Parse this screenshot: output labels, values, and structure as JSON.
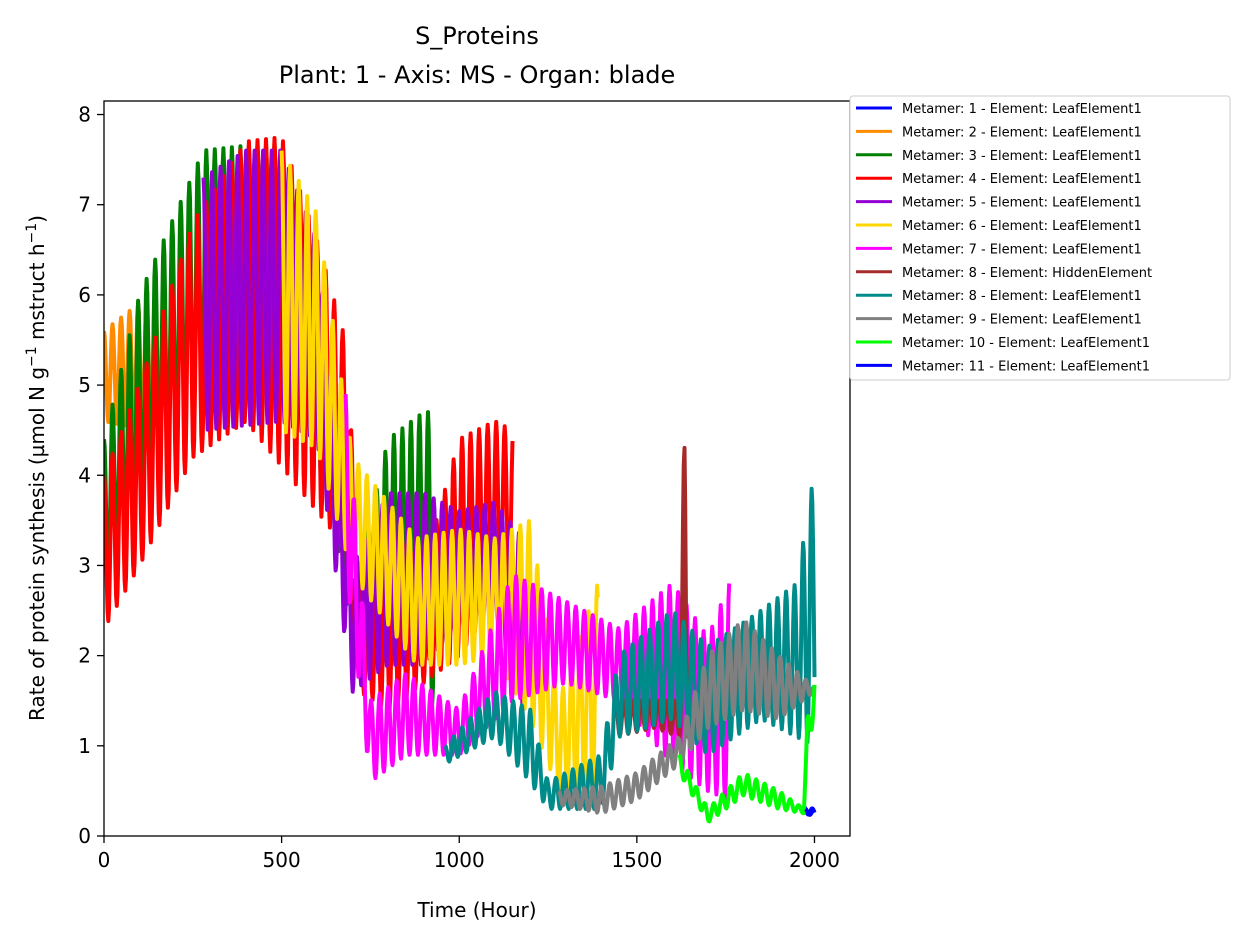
{
  "chart_data": {
    "type": "line",
    "title": "S_Proteins",
    "subtitle": "Plant: 1 - Axis: MS - Organ: blade",
    "xlabel": "Time (Hour)",
    "ylabel_main": "Rate of protein synthesis (µmol N g",
    "ylabel_sup1": "−1",
    "ylabel_mid": " mstruct h",
    "ylabel_sup2": "−1",
    "ylabel_end": ")",
    "xlim": [
      0,
      2100
    ],
    "ylim": [
      0,
      8.15
    ],
    "xticks": [
      0,
      500,
      1000,
      1500,
      2000
    ],
    "xtick_labels": [
      "0",
      "500",
      "1000",
      "1500",
      "2000"
    ],
    "yticks": [
      0,
      1,
      2,
      3,
      4,
      5,
      6,
      7,
      8
    ],
    "ytick_labels": [
      "0",
      "1",
      "2",
      "3",
      "4",
      "5",
      "6",
      "7",
      "8"
    ],
    "grid": false,
    "legend_position": "outside-right-top",
    "series": [
      {
        "name": "Metamer: 1 - Element: LeafElement1",
        "color": "#0000ff",
        "x_start": 1970,
        "x_end": 2000,
        "period": 24,
        "low": [
          [
            1970,
            0.25
          ],
          [
            2000,
            0.22
          ]
        ],
        "high": [
          [
            1970,
            0.33
          ],
          [
            2000,
            0.3
          ]
        ]
      },
      {
        "name": "Metamer: 2 - Element: LeafElement1",
        "color": "#ff8c00",
        "x_start": 0,
        "x_end": 260,
        "period": 24,
        "low": [
          [
            0,
            4.6
          ],
          [
            130,
            4.5
          ],
          [
            260,
            4.7
          ]
        ],
        "high": [
          [
            0,
            5.6
          ],
          [
            130,
            6.0
          ],
          [
            260,
            6.4
          ]
        ]
      },
      {
        "name": "Metamer: 3 - Element: LeafElement1",
        "color": "#008000",
        "x_start": 0,
        "x_end": 930,
        "period": 24,
        "low": [
          [
            0,
            2.7
          ],
          [
            100,
            3.5
          ],
          [
            280,
            4.7
          ],
          [
            500,
            4.6
          ],
          [
            650,
            3.4
          ],
          [
            720,
            1.7
          ],
          [
            800,
            1.6
          ],
          [
            900,
            1.7
          ],
          [
            930,
            1.4
          ]
        ],
        "high": [
          [
            0,
            4.4
          ],
          [
            100,
            6.0
          ],
          [
            280,
            7.6
          ],
          [
            500,
            7.7
          ],
          [
            650,
            5.5
          ],
          [
            720,
            3.0
          ],
          [
            800,
            4.4
          ],
          [
            900,
            4.7
          ],
          [
            930,
            4.7
          ]
        ]
      },
      {
        "name": "Metamer: 4 - Element: LeafElement1",
        "color": "#ff0000",
        "x_start": 0,
        "x_end": 1150,
        "period": 24,
        "low": [
          [
            0,
            2.3
          ],
          [
            100,
            3.0
          ],
          [
            250,
            4.2
          ],
          [
            400,
            4.6
          ],
          [
            600,
            3.6
          ],
          [
            680,
            3.2
          ],
          [
            720,
            1.6
          ],
          [
            800,
            1.4
          ],
          [
            900,
            1.7
          ],
          [
            1000,
            2.0
          ],
          [
            1100,
            2.6
          ],
          [
            1150,
            2.7
          ]
        ],
        "high": [
          [
            0,
            4.0
          ],
          [
            100,
            5.0
          ],
          [
            250,
            6.8
          ],
          [
            400,
            7.7
          ],
          [
            500,
            7.75
          ],
          [
            600,
            6.6
          ],
          [
            680,
            5.5
          ],
          [
            720,
            3.0
          ],
          [
            800,
            3.4
          ],
          [
            900,
            3.0
          ],
          [
            1000,
            4.4
          ],
          [
            1100,
            4.6
          ],
          [
            1150,
            4.5
          ]
        ]
      },
      {
        "name": "Metamer: 5 - Element: LeafElement1",
        "color": "#9400d3",
        "x_start": 280,
        "x_end": 1180,
        "period": 24,
        "low": [
          [
            280,
            4.5
          ],
          [
            500,
            4.6
          ],
          [
            600,
            4.4
          ],
          [
            700,
            1.6
          ],
          [
            800,
            1.9
          ],
          [
            900,
            1.9
          ],
          [
            1000,
            2.3
          ],
          [
            1100,
            2.5
          ],
          [
            1180,
            1.2
          ]
        ],
        "high": [
          [
            280,
            7.3
          ],
          [
            400,
            7.6
          ],
          [
            500,
            7.6
          ],
          [
            600,
            6.6
          ],
          [
            700,
            3.0
          ],
          [
            800,
            3.8
          ],
          [
            900,
            3.8
          ],
          [
            1000,
            3.6
          ],
          [
            1100,
            3.7
          ],
          [
            1180,
            3.3
          ]
        ]
      },
      {
        "name": "Metamer: 6 - Element: LeafElement1",
        "color": "#ffd700",
        "x_start": 500,
        "x_end": 1390,
        "period": 24,
        "low": [
          [
            500,
            4.5
          ],
          [
            600,
            4.3
          ],
          [
            700,
            2.9
          ],
          [
            880,
            1.9
          ],
          [
            1000,
            1.9
          ],
          [
            1100,
            2.0
          ],
          [
            1200,
            1.3
          ],
          [
            1280,
            0.5
          ],
          [
            1390,
            0.5
          ]
        ],
        "high": [
          [
            500,
            7.6
          ],
          [
            600,
            6.9
          ],
          [
            700,
            4.2
          ],
          [
            880,
            3.3
          ],
          [
            1000,
            3.4
          ],
          [
            1100,
            3.3
          ],
          [
            1200,
            3.5
          ],
          [
            1280,
            1.5
          ],
          [
            1390,
            2.8
          ]
        ]
      },
      {
        "name": "Metamer: 7 - Element: LeafElement1",
        "color": "#ff00ff",
        "x_start": 680,
        "x_end": 1760,
        "period": 24,
        "low": [
          [
            680,
            3.0
          ],
          [
            750,
            0.6
          ],
          [
            850,
            0.9
          ],
          [
            1000,
            0.9
          ],
          [
            1150,
            1.5
          ],
          [
            1300,
            1.7
          ],
          [
            1450,
            1.5
          ],
          [
            1600,
            0.8
          ],
          [
            1700,
            0.5
          ],
          [
            1760,
            0.4
          ]
        ],
        "high": [
          [
            680,
            4.9
          ],
          [
            750,
            1.5
          ],
          [
            850,
            1.8
          ],
          [
            1000,
            1.4
          ],
          [
            1150,
            2.9
          ],
          [
            1300,
            2.6
          ],
          [
            1450,
            2.3
          ],
          [
            1600,
            2.8
          ],
          [
            1700,
            2.2
          ],
          [
            1760,
            2.8
          ]
        ]
      },
      {
        "name": "Metamer: 8 - Element: HiddenElement",
        "color": "#a52a2a",
        "x_start": 1440,
        "x_end": 1650,
        "period": 24,
        "low": [
          [
            1440,
            1.1
          ],
          [
            1550,
            1.2
          ],
          [
            1620,
            1.1
          ],
          [
            1650,
            1.1
          ]
        ],
        "high": [
          [
            1440,
            1.5
          ],
          [
            1550,
            1.5
          ],
          [
            1620,
            1.5
          ],
          [
            1635,
            4.75
          ],
          [
            1650,
            1.6
          ]
        ]
      },
      {
        "name": "Metamer: 8 - Element: LeafElement1",
        "color": "#008b8b",
        "x_start": 960,
        "x_end": 2000,
        "period": 24,
        "low": [
          [
            960,
            0.8
          ],
          [
            1100,
            1.1
          ],
          [
            1200,
            0.6
          ],
          [
            1250,
            0.3
          ],
          [
            1400,
            0.3
          ],
          [
            1450,
            1.1
          ],
          [
            1600,
            1.3
          ],
          [
            1700,
            0.9
          ],
          [
            1850,
            1.3
          ],
          [
            2000,
            1.0
          ]
        ],
        "high": [
          [
            960,
            1.0
          ],
          [
            1100,
            1.6
          ],
          [
            1200,
            1.4
          ],
          [
            1250,
            0.6
          ],
          [
            1400,
            0.9
          ],
          [
            1450,
            2.0
          ],
          [
            1600,
            2.5
          ],
          [
            1700,
            2.1
          ],
          [
            1850,
            2.5
          ],
          [
            1950,
            2.8
          ],
          [
            2000,
            4.05
          ]
        ]
      },
      {
        "name": "Metamer: 9 - Element: LeafElement1",
        "color": "#808080",
        "x_start": 1280,
        "x_end": 2000,
        "period": 24,
        "low": [
          [
            1280,
            0.35
          ],
          [
            1400,
            0.25
          ],
          [
            1500,
            0.4
          ],
          [
            1620,
            0.8
          ],
          [
            1700,
            1.2
          ],
          [
            1800,
            1.4
          ],
          [
            1900,
            1.3
          ],
          [
            2000,
            1.6
          ]
        ],
        "high": [
          [
            1280,
            0.5
          ],
          [
            1400,
            0.55
          ],
          [
            1500,
            0.7
          ],
          [
            1620,
            1.1
          ],
          [
            1700,
            2.0
          ],
          [
            1800,
            2.4
          ],
          [
            1900,
            2.0
          ],
          [
            2000,
            1.65
          ]
        ]
      },
      {
        "name": "Metamer: 10 - Element: LeafElement1",
        "color": "#00ff00",
        "x_start": 1620,
        "x_end": 2000,
        "period": 24,
        "low": [
          [
            1620,
            0.7
          ],
          [
            1700,
            0.15
          ],
          [
            1800,
            0.45
          ],
          [
            1900,
            0.3
          ],
          [
            1970,
            0.25
          ],
          [
            1980,
            1.0
          ],
          [
            2000,
            1.3
          ]
        ],
        "high": [
          [
            1620,
            0.9
          ],
          [
            1700,
            0.3
          ],
          [
            1800,
            0.7
          ],
          [
            1900,
            0.5
          ],
          [
            1970,
            0.3
          ],
          [
            1980,
            1.3
          ],
          [
            2000,
            1.8
          ]
        ]
      },
      {
        "name": "Metamer: 11 - Element: LeafElement1",
        "color": "#0000ff",
        "x_start": 1975,
        "x_end": 2000,
        "period": 24,
        "low": [
          [
            1975,
            0.22
          ],
          [
            2000,
            0.25
          ]
        ],
        "high": [
          [
            1975,
            0.3
          ],
          [
            2000,
            0.28
          ]
        ]
      }
    ]
  }
}
